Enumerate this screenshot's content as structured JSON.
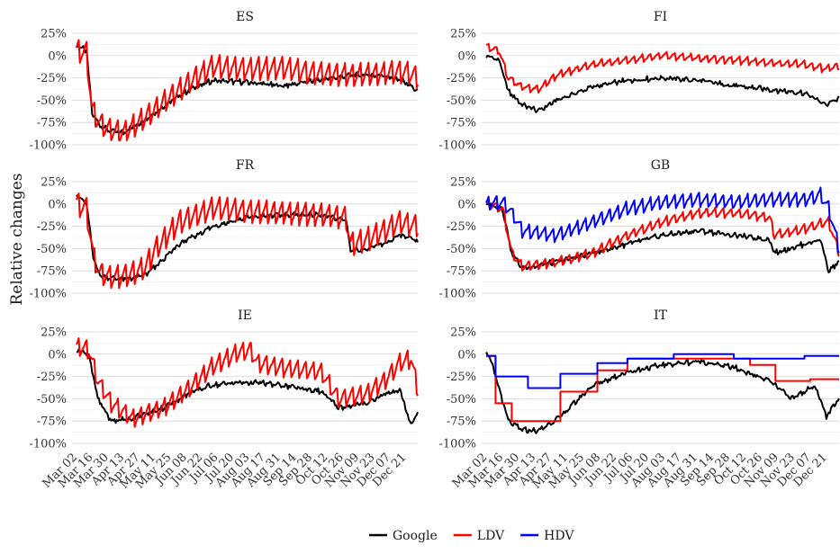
{
  "chart_data": {
    "type": "line",
    "ylabel": "Relative changes",
    "x_tick_labels": [
      "Mar 02",
      "Mar 16",
      "Mar 30",
      "Apr 13",
      "Apr 27",
      "May 11",
      "May 25",
      "Jun 08",
      "Jun 22",
      "Jul 06",
      "Jul 20",
      "Aug 03",
      "Aug 17",
      "Aug 31",
      "Sep 14",
      "Sep 28",
      "Oct 12",
      "Oct 26",
      "Nov 09",
      "Nov 23",
      "Dec 07",
      "Dec 21"
    ],
    "y_ticks": [
      "25%",
      "0%",
      "-25%",
      "-50%",
      "-75%",
      "-100%"
    ],
    "ylim": [
      -100,
      25
    ],
    "xlim": [
      "2020-02-26",
      "2020-12-31"
    ],
    "grid": true,
    "legend_position": "bottom",
    "colors": {
      "Google": "#000000",
      "LDV": "#ff0000",
      "HDV": "#0000ff"
    },
    "legend": [
      {
        "name": "Google",
        "color": "#000000"
      },
      {
        "name": "LDV",
        "color": "#ff0000"
      },
      {
        "name": "HDV",
        "color": "#0000ff"
      }
    ],
    "panels": [
      {
        "title": "ES",
        "series": [
          {
            "name": "Google",
            "x": [
              "2020-03-01",
              "2020-03-10",
              "2020-03-15",
              "2020-03-22",
              "2020-04-01",
              "2020-04-12",
              "2020-05-01",
              "2020-05-20",
              "2020-06-10",
              "2020-07-01",
              "2020-08-01",
              "2020-09-01",
              "2020-10-01",
              "2020-11-01",
              "2020-12-01",
              "2020-12-20",
              "2020-12-31"
            ],
            "y": [
              12,
              5,
              -65,
              -78,
              -85,
              -86,
              -72,
              -55,
              -38,
              -28,
              -30,
              -34,
              -28,
              -22,
              -22,
              -30,
              -40
            ]
          },
          {
            "name": "LDV",
            "weekly_amplitude": 25,
            "x": [
              "2020-03-01",
              "2020-03-10",
              "2020-03-15",
              "2020-03-22",
              "2020-04-01",
              "2020-04-12",
              "2020-05-01",
              "2020-05-20",
              "2020-06-10",
              "2020-07-01",
              "2020-08-01",
              "2020-09-01",
              "2020-10-01",
              "2020-11-01",
              "2020-12-01",
              "2020-12-20",
              "2020-12-31"
            ],
            "y": [
              5,
              3,
              -62,
              -76,
              -84,
              -87,
              -70,
              -50,
              -30,
              -12,
              -15,
              -14,
              -20,
              -22,
              -20,
              -18,
              -25
            ]
          }
        ]
      },
      {
        "title": "FI",
        "series": [
          {
            "name": "Google",
            "x": [
              "2020-03-01",
              "2020-03-12",
              "2020-03-20",
              "2020-04-01",
              "2020-04-15",
              "2020-05-01",
              "2020-06-01",
              "2020-07-01",
              "2020-08-01",
              "2020-09-01",
              "2020-10-01",
              "2020-11-01",
              "2020-12-01",
              "2020-12-20",
              "2020-12-31"
            ],
            "y": [
              0,
              -5,
              -40,
              -55,
              -62,
              -50,
              -35,
              -28,
              -25,
              -28,
              -34,
              -38,
              -42,
              -55,
              -48
            ]
          },
          {
            "name": "LDV",
            "weekly_amplitude": 8,
            "x": [
              "2020-03-01",
              "2020-03-12",
              "2020-03-20",
              "2020-04-01",
              "2020-04-15",
              "2020-05-01",
              "2020-06-01",
              "2020-07-01",
              "2020-08-01",
              "2020-09-01",
              "2020-10-01",
              "2020-11-01",
              "2020-12-01",
              "2020-12-20",
              "2020-12-31"
            ],
            "y": [
              10,
              5,
              -25,
              -35,
              -38,
              -22,
              -10,
              -5,
              0,
              -3,
              -5,
              -8,
              -10,
              -15,
              -12
            ]
          }
        ]
      },
      {
        "title": "FR",
        "series": [
          {
            "name": "Google",
            "x": [
              "2020-03-01",
              "2020-03-10",
              "2020-03-16",
              "2020-03-22",
              "2020-04-01",
              "2020-04-15",
              "2020-05-01",
              "2020-05-11",
              "2020-06-01",
              "2020-07-01",
              "2020-08-01",
              "2020-09-01",
              "2020-10-01",
              "2020-10-28",
              "2020-11-01",
              "2020-11-15",
              "2020-12-01",
              "2020-12-15",
              "2020-12-31"
            ],
            "y": [
              10,
              0,
              -60,
              -80,
              -83,
              -84,
              -80,
              -70,
              -45,
              -25,
              -15,
              -12,
              -12,
              -18,
              -52,
              -50,
              -45,
              -35,
              -42
            ]
          },
          {
            "name": "LDV",
            "weekly_amplitude": 25,
            "x": [
              "2020-03-01",
              "2020-03-10",
              "2020-03-16",
              "2020-03-22",
              "2020-04-01",
              "2020-04-15",
              "2020-05-01",
              "2020-05-11",
              "2020-06-01",
              "2020-07-01",
              "2020-08-01",
              "2020-09-01",
              "2020-10-01",
              "2020-10-28",
              "2020-11-01",
              "2020-11-15",
              "2020-12-01",
              "2020-12-15",
              "2020-12-31"
            ],
            "y": [
              0,
              -5,
              -58,
              -78,
              -82,
              -80,
              -72,
              -50,
              -20,
              -5,
              -8,
              -10,
              -12,
              -15,
              -45,
              -40,
              -30,
              -20,
              -25
            ]
          }
        ]
      },
      {
        "title": "GB",
        "series": [
          {
            "name": "Google",
            "x": [
              "2020-03-01",
              "2020-03-15",
              "2020-03-23",
              "2020-04-01",
              "2020-05-01",
              "2020-06-01",
              "2020-07-01",
              "2020-08-01",
              "2020-09-01",
              "2020-10-01",
              "2020-11-01",
              "2020-11-05",
              "2020-12-01",
              "2020-12-15",
              "2020-12-22",
              "2020-12-31"
            ],
            "y": [
              0,
              -5,
              -55,
              -72,
              -65,
              -55,
              -45,
              -35,
              -30,
              -35,
              -40,
              -55,
              -45,
              -40,
              -75,
              -65
            ]
          },
          {
            "name": "LDV",
            "weekly_amplitude": 10,
            "x": [
              "2020-03-01",
              "2020-03-15",
              "2020-03-23",
              "2020-04-01",
              "2020-05-01",
              "2020-06-01",
              "2020-07-01",
              "2020-08-01",
              "2020-09-01",
              "2020-10-01",
              "2020-11-01",
              "2020-11-05",
              "2020-12-01",
              "2020-12-15",
              "2020-12-22",
              "2020-12-31"
            ],
            "y": [
              0,
              -5,
              -55,
              -70,
              -65,
              -55,
              -35,
              -20,
              -10,
              -10,
              -15,
              -35,
              -28,
              -22,
              -20,
              -55
            ]
          },
          {
            "name": "HDV",
            "weekly_amplitude": 15,
            "x": [
              "2020-03-01",
              "2020-03-15",
              "2020-03-23",
              "2020-04-01",
              "2020-05-01",
              "2020-06-01",
              "2020-07-01",
              "2020-08-01",
              "2020-09-01",
              "2020-10-01",
              "2020-11-01",
              "2020-12-01",
              "2020-12-15",
              "2020-12-22",
              "2020-12-31"
            ],
            "y": [
              0,
              2,
              -10,
              -30,
              -35,
              -20,
              -5,
              2,
              5,
              2,
              5,
              5,
              10,
              -5,
              -50
            ]
          }
        ]
      },
      {
        "title": "IE",
        "series": [
          {
            "name": "Google",
            "x": [
              "2020-03-01",
              "2020-03-12",
              "2020-03-20",
              "2020-04-01",
              "2020-04-20",
              "2020-05-18",
              "2020-06-08",
              "2020-06-29",
              "2020-07-20",
              "2020-08-10",
              "2020-09-01",
              "2020-10-06",
              "2020-10-21",
              "2020-11-15",
              "2020-12-01",
              "2020-12-15",
              "2020-12-25",
              "2020-12-31"
            ],
            "y": [
              5,
              0,
              -50,
              -75,
              -72,
              -60,
              -45,
              -35,
              -32,
              -32,
              -35,
              -42,
              -60,
              -55,
              -45,
              -40,
              -80,
              -65
            ]
          },
          {
            "name": "LDV",
            "weekly_amplitude": 20,
            "x": [
              "2020-03-01",
              "2020-03-12",
              "2020-03-20",
              "2020-04-01",
              "2020-04-20",
              "2020-05-18",
              "2020-06-08",
              "2020-06-29",
              "2020-07-20",
              "2020-08-03",
              "2020-08-10",
              "2020-09-01",
              "2020-10-06",
              "2020-10-21",
              "2020-11-15",
              "2020-12-01",
              "2020-12-15",
              "2020-12-25",
              "2020-12-31"
            ],
            "y": [
              8,
              5,
              -30,
              -55,
              -72,
              -60,
              -40,
              -15,
              0,
              5,
              -10,
              -15,
              -20,
              -50,
              -45,
              -30,
              -10,
              -5,
              -40
            ]
          }
        ]
      },
      {
        "title": "IT",
        "series": [
          {
            "name": "Google",
            "x": [
              "2020-03-01",
              "2020-03-08",
              "2020-03-20",
              "2020-04-01",
              "2020-04-15",
              "2020-05-04",
              "2020-06-01",
              "2020-07-01",
              "2020-08-01",
              "2020-09-01",
              "2020-10-01",
              "2020-11-01",
              "2020-11-20",
              "2020-12-10",
              "2020-12-20",
              "2020-12-31"
            ],
            "y": [
              5,
              -20,
              -75,
              -85,
              -86,
              -70,
              -35,
              -20,
              -12,
              -8,
              -15,
              -30,
              -50,
              -35,
              -70,
              -50
            ]
          },
          {
            "name": "LDV",
            "step": true,
            "x": [
              "2020-03-01",
              "2020-03-09",
              "2020-03-23",
              "2020-04-10",
              "2020-05-04",
              "2020-06-05",
              "2020-07-01",
              "2020-09-01",
              "2020-10-15",
              "2020-11-06",
              "2020-12-06",
              "2020-12-31"
            ],
            "y": [
              -2,
              -55,
              -75,
              -75,
              -42,
              -18,
              -5,
              -5,
              -12,
              -30,
              -28,
              -28
            ]
          },
          {
            "name": "HDV",
            "step": true,
            "x": [
              "2020-03-01",
              "2020-03-09",
              "2020-04-06",
              "2020-05-04",
              "2020-06-05",
              "2020-07-01",
              "2020-08-10",
              "2020-10-01",
              "2020-12-01",
              "2020-12-31"
            ],
            "y": [
              -2,
              -25,
              -38,
              -22,
              -10,
              -5,
              0,
              -5,
              -2,
              -2
            ]
          }
        ]
      }
    ]
  }
}
